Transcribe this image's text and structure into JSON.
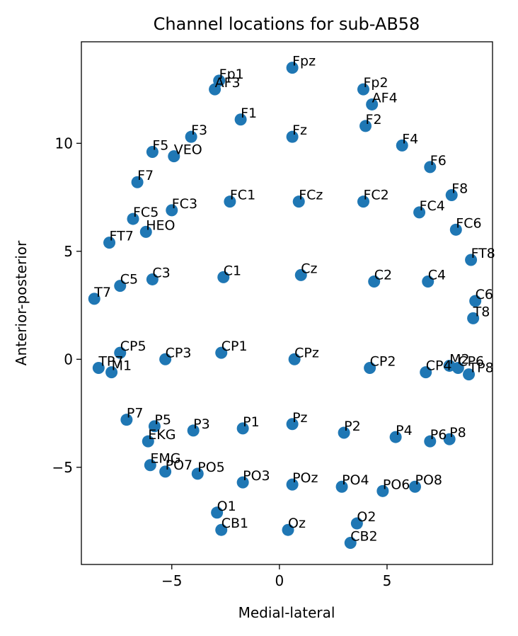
{
  "chart_data": {
    "type": "scatter",
    "title": "Channel locations for sub-AB58",
    "xlabel": "Medial-lateral",
    "ylabel": "Anterior-posterior",
    "xlim": [
      -9.2,
      9.9
    ],
    "ylim": [
      -9.5,
      14.7
    ],
    "xticks": [
      -5,
      0,
      5
    ],
    "xtick_labels": [
      "−5",
      "0",
      "5"
    ],
    "yticks": [
      -5,
      0,
      5,
      10
    ],
    "ytick_labels": [
      "−5",
      "0",
      "5",
      "10"
    ],
    "grid": false,
    "marker_color": "#1f77b4",
    "points": [
      {
        "label": "Fpz",
        "x": 0.6,
        "y": 13.5
      },
      {
        "label": "Fp1",
        "x": -2.8,
        "y": 12.9
      },
      {
        "label": "AF3",
        "x": -3.0,
        "y": 12.5
      },
      {
        "label": "Fp2",
        "x": 3.9,
        "y": 12.5
      },
      {
        "label": "AF4",
        "x": 4.3,
        "y": 11.8
      },
      {
        "label": "F1",
        "x": -1.8,
        "y": 11.1
      },
      {
        "label": "Fz",
        "x": 0.6,
        "y": 10.3
      },
      {
        "label": "F2",
        "x": 4.0,
        "y": 10.8
      },
      {
        "label": "F3",
        "x": -4.1,
        "y": 10.3
      },
      {
        "label": "F4",
        "x": 5.7,
        "y": 9.9
      },
      {
        "label": "F5",
        "x": -5.9,
        "y": 9.6
      },
      {
        "label": "VEO",
        "x": -4.9,
        "y": 9.4
      },
      {
        "label": "F6",
        "x": 7.0,
        "y": 8.9
      },
      {
        "label": "F7",
        "x": -6.6,
        "y": 8.2
      },
      {
        "label": "F8",
        "x": 8.0,
        "y": 7.6
      },
      {
        "label": "FC1",
        "x": -2.3,
        "y": 7.3
      },
      {
        "label": "FCz",
        "x": 0.9,
        "y": 7.3
      },
      {
        "label": "FC2",
        "x": 3.9,
        "y": 7.3
      },
      {
        "label": "FC3",
        "x": -5.0,
        "y": 6.9
      },
      {
        "label": "FC4",
        "x": 6.5,
        "y": 6.8
      },
      {
        "label": "FC5",
        "x": -6.8,
        "y": 6.5
      },
      {
        "label": "FC6",
        "x": 8.2,
        "y": 6.0
      },
      {
        "label": "HEO",
        "x": -6.2,
        "y": 5.9
      },
      {
        "label": "FT7",
        "x": -7.9,
        "y": 5.4
      },
      {
        "label": "FT8",
        "x": 8.9,
        "y": 4.6
      },
      {
        "label": "C1",
        "x": -2.6,
        "y": 3.8
      },
      {
        "label": "Cz",
        "x": 1.0,
        "y": 3.9
      },
      {
        "label": "C2",
        "x": 4.4,
        "y": 3.6
      },
      {
        "label": "C3",
        "x": -5.9,
        "y": 3.7
      },
      {
        "label": "C4",
        "x": 6.9,
        "y": 3.6
      },
      {
        "label": "C5",
        "x": -7.4,
        "y": 3.4
      },
      {
        "label": "T7",
        "x": -8.6,
        "y": 2.8
      },
      {
        "label": "C6",
        "x": 9.1,
        "y": 2.7
      },
      {
        "label": "T8",
        "x": 9.0,
        "y": 1.9
      },
      {
        "label": "CP5",
        "x": -7.4,
        "y": 0.3
      },
      {
        "label": "CP3",
        "x": -5.3,
        "y": 0.0
      },
      {
        "label": "CP1",
        "x": -2.7,
        "y": 0.3
      },
      {
        "label": "CPz",
        "x": 0.7,
        "y": 0.0
      },
      {
        "label": "CP2",
        "x": 4.2,
        "y": -0.4
      },
      {
        "label": "CP4",
        "x": 6.8,
        "y": -0.6
      },
      {
        "label": "M2",
        "x": 7.9,
        "y": -0.3
      },
      {
        "label": "CP6",
        "x": 8.3,
        "y": -0.4
      },
      {
        "label": "TP8",
        "x": 8.8,
        "y": -0.7
      },
      {
        "label": "TP7",
        "x": -8.4,
        "y": -0.4
      },
      {
        "label": "M1",
        "x": -7.8,
        "y": -0.6
      },
      {
        "label": "P7",
        "x": -7.1,
        "y": -2.8
      },
      {
        "label": "P5",
        "x": -5.8,
        "y": -3.1
      },
      {
        "label": "P3",
        "x": -4.0,
        "y": -3.3
      },
      {
        "label": "P1",
        "x": -1.7,
        "y": -3.2
      },
      {
        "label": "Pz",
        "x": 0.6,
        "y": -3.0
      },
      {
        "label": "P2",
        "x": 3.0,
        "y": -3.4
      },
      {
        "label": "P4",
        "x": 5.4,
        "y": -3.6
      },
      {
        "label": "P6",
        "x": 7.0,
        "y": -3.8
      },
      {
        "label": "P8",
        "x": 7.9,
        "y": -3.7
      },
      {
        "label": "EKG",
        "x": -6.1,
        "y": -3.8
      },
      {
        "label": "EMG",
        "x": -6.0,
        "y": -4.9
      },
      {
        "label": "PO7",
        "x": -5.3,
        "y": -5.2
      },
      {
        "label": "PO5",
        "x": -3.8,
        "y": -5.3
      },
      {
        "label": "PO3",
        "x": -1.7,
        "y": -5.7
      },
      {
        "label": "POz",
        "x": 0.6,
        "y": -5.8
      },
      {
        "label": "PO4",
        "x": 2.9,
        "y": -5.9
      },
      {
        "label": "PO6",
        "x": 4.8,
        "y": -6.1
      },
      {
        "label": "PO8",
        "x": 6.3,
        "y": -5.9
      },
      {
        "label": "O1",
        "x": -2.9,
        "y": -7.1
      },
      {
        "label": "CB1",
        "x": -2.7,
        "y": -7.9
      },
      {
        "label": "Oz",
        "x": 0.4,
        "y": -7.9
      },
      {
        "label": "O2",
        "x": 3.6,
        "y": -7.6
      },
      {
        "label": "CB2",
        "x": 3.3,
        "y": -8.5
      }
    ]
  }
}
